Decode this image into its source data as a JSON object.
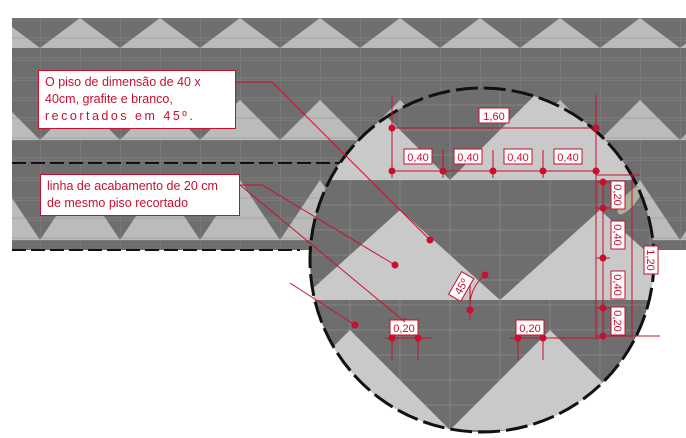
{
  "annotations": {
    "floor_note": {
      "lines": [
        "O piso de dimensão de 40 x",
        "40cm, grafite e branco,",
        "recortados em 45º."
      ]
    },
    "border_note": {
      "lines": [
        "linha de acabamento de 20 cm",
        "de mesmo piso recortado"
      ]
    }
  },
  "dimensions": {
    "overall_width": "1,60",
    "tile_widths": [
      "0,40",
      "0,40",
      "0,40",
      "0,40"
    ],
    "vertical_segments": [
      "0,20",
      "0,40",
      "0,40",
      "0,20"
    ],
    "overall_height": "1,20",
    "border_strips": [
      "0,20",
      "0,20"
    ],
    "angle": "45º"
  },
  "colors": {
    "accent": "#c8102e",
    "tile_dark": "#6e6e6e",
    "tile_light": "#c9c9c9",
    "grout": "#8a8a8a"
  }
}
